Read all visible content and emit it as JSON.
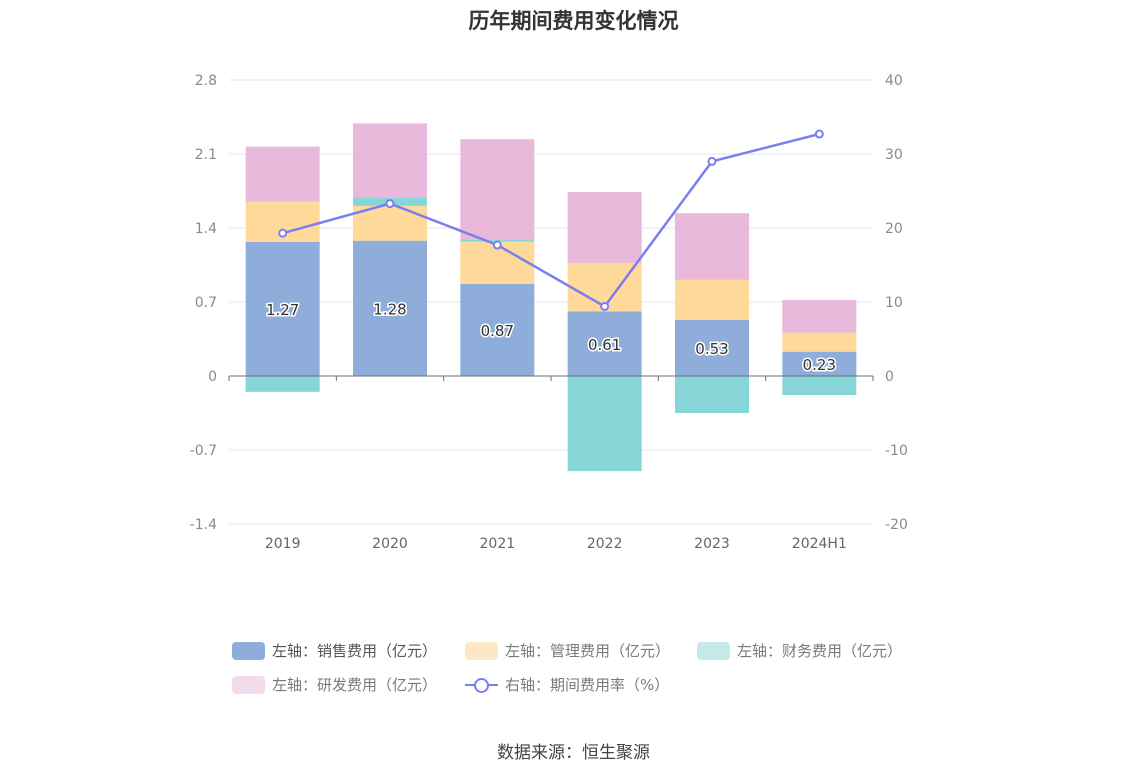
{
  "chart_data": {
    "type": "bar",
    "title": "历年期间费用变化情况",
    "categories": [
      "2019",
      "2020",
      "2021",
      "2022",
      "2023",
      "2024H1"
    ],
    "left_axis": {
      "ylim": [
        -1.4,
        2.8
      ],
      "ticks": [
        "2.8",
        "2.1",
        "1.4",
        "0.7",
        "0",
        "-0.7",
        "-1.4"
      ]
    },
    "right_axis": {
      "ylim": [
        -20,
        40
      ],
      "ticks": [
        "40",
        "30",
        "20",
        "10",
        "0",
        "-10",
        "-20"
      ]
    },
    "series": [
      {
        "name": "左轴：销售费用（亿元）",
        "type": "bar",
        "axis": "left",
        "color": "#8eaddb",
        "values": [
          1.27,
          1.28,
          0.87,
          0.61,
          0.53,
          0.23
        ],
        "labels": [
          "1.27",
          "1.28",
          "0.87",
          "0.61",
          "0.53",
          "0.23"
        ]
      },
      {
        "name": "左轴：管理费用（亿元）",
        "type": "bar",
        "axis": "left",
        "color": "#ffd99a",
        "values": [
          0.38,
          0.33,
          0.4,
          0.46,
          0.38,
          0.18
        ]
      },
      {
        "name": "左轴：财务费用（亿元）",
        "type": "bar",
        "axis": "left",
        "color": "#86d6d8",
        "values": [
          -0.15,
          0.08,
          0.02,
          -0.9,
          -0.35,
          -0.18
        ]
      },
      {
        "name": "左轴：研发费用（亿元）",
        "type": "bar",
        "axis": "left",
        "color": "#e8b9da",
        "values": [
          0.52,
          0.7,
          0.95,
          0.67,
          0.63,
          0.31
        ]
      },
      {
        "name": "右轴：期间费用率（%）",
        "type": "line",
        "axis": "right",
        "color": "#7b7fee",
        "values": [
          19.3,
          23.3,
          17.7,
          9.4,
          29.0,
          32.7
        ]
      }
    ],
    "legend_position": "bottom"
  },
  "legend": [
    {
      "label": "左轴：销售费用（亿元）",
      "color": "#8eaddb",
      "kind": "bar"
    },
    {
      "label": "左轴：管理费用（亿元）",
      "color": "#fde8c6",
      "kind": "bar"
    },
    {
      "label": "左轴：财务费用（亿元）",
      "color": "#c3e9ea",
      "kind": "bar"
    },
    {
      "label": "左轴：研发费用（亿元）",
      "color": "#f2dcec",
      "kind": "bar"
    },
    {
      "label": "右轴：期间费用率（%）",
      "color": "#7b7fee",
      "kind": "line"
    }
  ],
  "source": "数据来源：恒生聚源"
}
